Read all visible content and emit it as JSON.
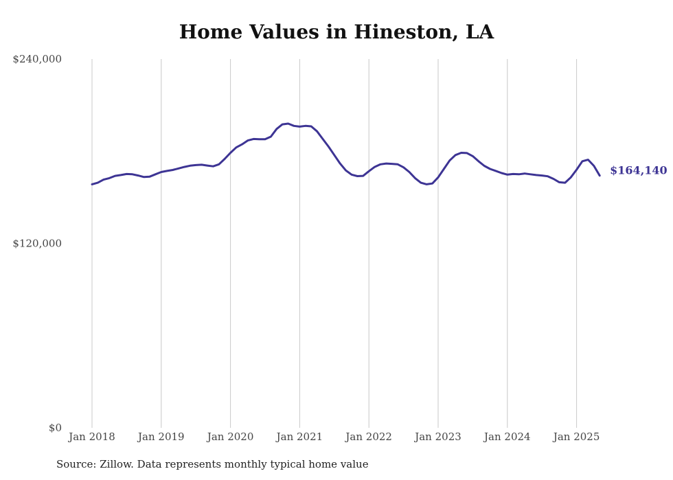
{
  "chart_data": {
    "type": "line",
    "title": "Home Values in Hineston, LA",
    "xlabel": "",
    "ylabel": "",
    "ylim": [
      0,
      240000
    ],
    "y_ticks": [
      {
        "value": 0,
        "label": "$0"
      },
      {
        "value": 120000,
        "label": "$120,000"
      },
      {
        "value": 240000,
        "label": "$240,000"
      }
    ],
    "x_ticks": [
      {
        "value": 2018.0,
        "label": "Jan 2018"
      },
      {
        "value": 2019.0,
        "label": "Jan 2019"
      },
      {
        "value": 2020.0,
        "label": "Jan 2020"
      },
      {
        "value": 2021.0,
        "label": "Jan 2021"
      },
      {
        "value": 2022.0,
        "label": "Jan 2022"
      },
      {
        "value": 2023.0,
        "label": "Jan 2023"
      },
      {
        "value": 2024.0,
        "label": "Jan 2024"
      },
      {
        "value": 2025.0,
        "label": "Jan 2025"
      }
    ],
    "xlim": [
      2017.0,
      2025.333
    ],
    "grid": "vertical lines at each January",
    "series": [
      {
        "color": "#3d3494",
        "end_label": "$164,140",
        "points": [
          [
            2018.0,
            158500
          ],
          [
            2018.083,
            159500
          ],
          [
            2018.167,
            161500
          ],
          [
            2018.25,
            162500
          ],
          [
            2018.333,
            164000
          ],
          [
            2018.417,
            164500
          ],
          [
            2018.5,
            165200
          ],
          [
            2018.583,
            165000
          ],
          [
            2018.667,
            164200
          ],
          [
            2018.75,
            163200
          ],
          [
            2018.833,
            163500
          ],
          [
            2018.917,
            165000
          ],
          [
            2019.0,
            166500
          ],
          [
            2019.083,
            167200
          ],
          [
            2019.167,
            167800
          ],
          [
            2019.25,
            168800
          ],
          [
            2019.333,
            169800
          ],
          [
            2019.417,
            170600
          ],
          [
            2019.5,
            171000
          ],
          [
            2019.583,
            171200
          ],
          [
            2019.667,
            170700
          ],
          [
            2019.75,
            170200
          ],
          [
            2019.833,
            171500
          ],
          [
            2019.917,
            175000
          ],
          [
            2020.0,
            179000
          ],
          [
            2020.083,
            182500
          ],
          [
            2020.167,
            184500
          ],
          [
            2020.25,
            187000
          ],
          [
            2020.333,
            188000
          ],
          [
            2020.417,
            187800
          ],
          [
            2020.5,
            187800
          ],
          [
            2020.583,
            189500
          ],
          [
            2020.667,
            194500
          ],
          [
            2020.75,
            197500
          ],
          [
            2020.833,
            198000
          ],
          [
            2020.917,
            196500
          ],
          [
            2021.0,
            196000
          ],
          [
            2021.083,
            196500
          ],
          [
            2021.167,
            196200
          ],
          [
            2021.25,
            193000
          ],
          [
            2021.333,
            188000
          ],
          [
            2021.417,
            183000
          ],
          [
            2021.5,
            177500
          ],
          [
            2021.583,
            172000
          ],
          [
            2021.667,
            167500
          ],
          [
            2021.75,
            164800
          ],
          [
            2021.833,
            163800
          ],
          [
            2021.917,
            164000
          ],
          [
            2022.0,
            167000
          ],
          [
            2022.083,
            169800
          ],
          [
            2022.167,
            171500
          ],
          [
            2022.25,
            172000
          ],
          [
            2022.333,
            171800
          ],
          [
            2022.417,
            171500
          ],
          [
            2022.5,
            169500
          ],
          [
            2022.583,
            166500
          ],
          [
            2022.667,
            162500
          ],
          [
            2022.75,
            159500
          ],
          [
            2022.833,
            158500
          ],
          [
            2022.917,
            159000
          ],
          [
            2023.0,
            163000
          ],
          [
            2023.083,
            168500
          ],
          [
            2023.167,
            174000
          ],
          [
            2023.25,
            177500
          ],
          [
            2023.333,
            179000
          ],
          [
            2023.417,
            178800
          ],
          [
            2023.5,
            176800
          ],
          [
            2023.583,
            173500
          ],
          [
            2023.667,
            170500
          ],
          [
            2023.75,
            168500
          ],
          [
            2023.833,
            167200
          ],
          [
            2023.917,
            165800
          ],
          [
            2024.0,
            164800
          ],
          [
            2024.083,
            165200
          ],
          [
            2024.167,
            165000
          ],
          [
            2024.25,
            165500
          ],
          [
            2024.333,
            165000
          ],
          [
            2024.417,
            164500
          ],
          [
            2024.5,
            164200
          ],
          [
            2024.583,
            163700
          ],
          [
            2024.667,
            162000
          ],
          [
            2024.75,
            159800
          ],
          [
            2024.833,
            159500
          ],
          [
            2024.917,
            163000
          ],
          [
            2025.0,
            168000
          ],
          [
            2025.083,
            173500
          ],
          [
            2025.167,
            174500
          ],
          [
            2025.25,
            170500
          ],
          [
            2025.333,
            164140
          ]
        ]
      }
    ]
  },
  "footer": {
    "source": "Source: Zillow. Data represents monthly typical home value"
  }
}
